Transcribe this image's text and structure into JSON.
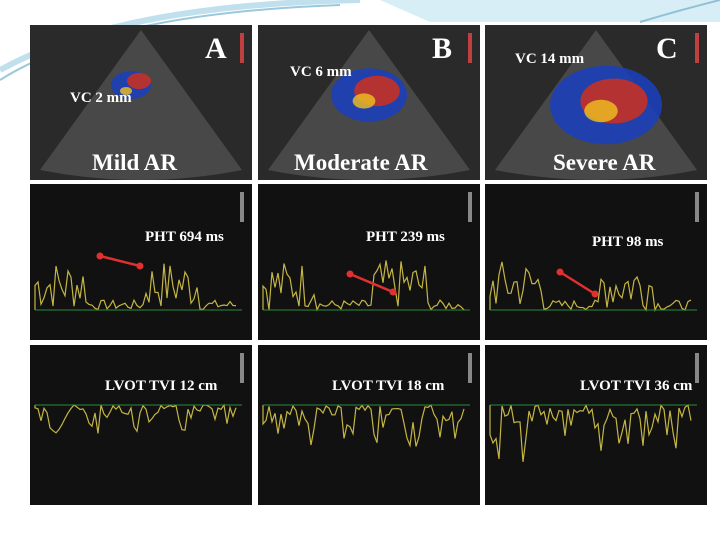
{
  "panels": [
    {
      "letter": "A",
      "vc": "VC 2 mm",
      "grade": "Mild AR",
      "pht": "PHT 694 ms",
      "lvot": "LVOT TVI 12 cm"
    },
    {
      "letter": "B",
      "vc": "VC 6 mm",
      "grade": "Moderate AR",
      "pht": "PHT 239 ms",
      "lvot": "LVOT TVI 18 cm"
    },
    {
      "letter": "C",
      "vc": "VC 14 mm",
      "grade": "Severe AR",
      "pht": "PHT 98 ms",
      "lvot": "LVOT TVI 36 cm"
    }
  ]
}
